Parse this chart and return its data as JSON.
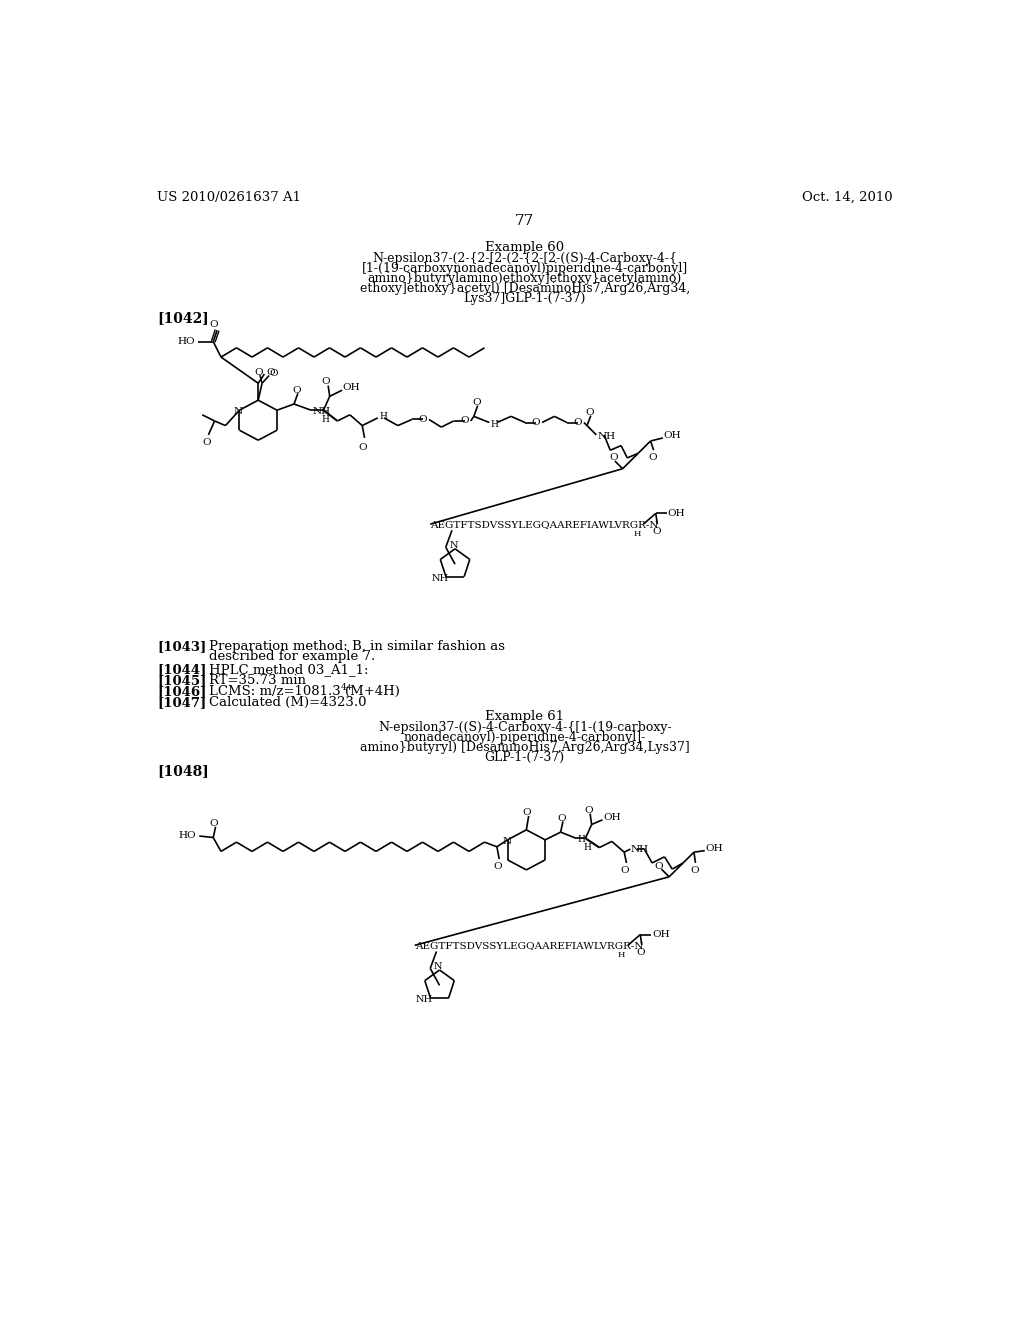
{
  "background_color": "#ffffff",
  "header_left": "US 2010/0261637 A1",
  "header_right": "Oct. 14, 2010",
  "page_number": "77",
  "example60_title": "Example 60",
  "ex60_lines": [
    "N-epsilon37-(2-{2-[2-(2-{2-[2-((S)-4-Carboxy-4-{",
    "[1-(19-carboxynonadecanoyl)piperidine-4-carbonyl]",
    "amino}butyrylamino)ethoxy]ethoxy}acetylamino)",
    "ethoxy]ethoxy}acetyl) [DesaminoHis7,Arg26,Arg34,",
    "Lys37]GLP-1-(7-37)"
  ],
  "label1042": "[1042]",
  "label1043": "[1043]",
  "text1043a": "Preparation method: B, in similar fashion as",
  "text1043b": "described for example 7.",
  "label1044": "[1044]",
  "text1044": "HPLC method 03_A1_1:",
  "label1045": "[1045]",
  "text1045": "RT=35.73 min",
  "label1046": "[1046]",
  "text1046": "LCMS: m/z=1081.3 (M+4H)",
  "text1046_sup": "4+",
  "label1047": "[1047]",
  "text1047": "Calculated (M)=4323.0",
  "example61_title": "Example 61",
  "ex61_lines": [
    "N-epsilon37-((S)-4-Carboxy-4-{[1-(19-carboxy-",
    "nonadecanoyl)-piperidine-4-carbonyl]-",
    "amino}butyryl) [DesaminoHis7,Arg26,Arg34,Lys37]",
    "GLP-1-(7-37)"
  ],
  "label1048": "[1048]"
}
